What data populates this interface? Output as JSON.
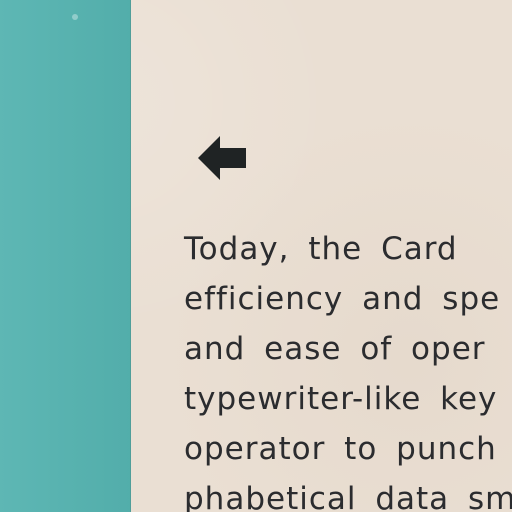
{
  "document": {
    "arrow_icon": "left-arrow-icon",
    "text_lines": [
      "Today, the Card",
      "efficiency and spe",
      "and ease of oper",
      "typewriter-like key",
      "operator to punch",
      "phabetical data sm"
    ]
  },
  "colors": {
    "paper": "#eadfd3",
    "teal": "#55b3b0",
    "ink": "#2b2c2f"
  }
}
